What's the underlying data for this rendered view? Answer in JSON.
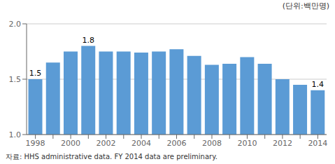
{
  "chart_data": {
    "type": "bar",
    "y_label": "(단위:백만명)",
    "annotations": [
      "자료: HHS administrative data. FY 2014 data are preliminary."
    ],
    "categories": [
      "1998",
      null,
      "2000",
      null,
      "2002",
      null,
      "2004",
      null,
      "2006",
      null,
      "2008",
      null,
      "2010",
      null,
      "2012",
      null,
      "2014"
    ],
    "values": [
      1.5,
      1.65,
      1.75,
      1.8,
      1.75,
      1.75,
      1.74,
      1.75,
      1.77,
      1.71,
      1.63,
      1.64,
      1.7,
      1.64,
      1.5,
      1.45,
      1.4
    ],
    "value_labels": [
      "1.5",
      null,
      null,
      "1.8",
      null,
      null,
      null,
      null,
      null,
      null,
      null,
      null,
      null,
      null,
      null,
      null,
      "1.4"
    ],
    "color": "#5B9BD5",
    "ylim": [
      1.0,
      2.0
    ],
    "yticks": [
      {
        "value": 1.0,
        "label": "1.0"
      },
      1.5,
      {
        "value": 2.0,
        "label": "2.0"
      }
    ],
    "grid": true
  }
}
